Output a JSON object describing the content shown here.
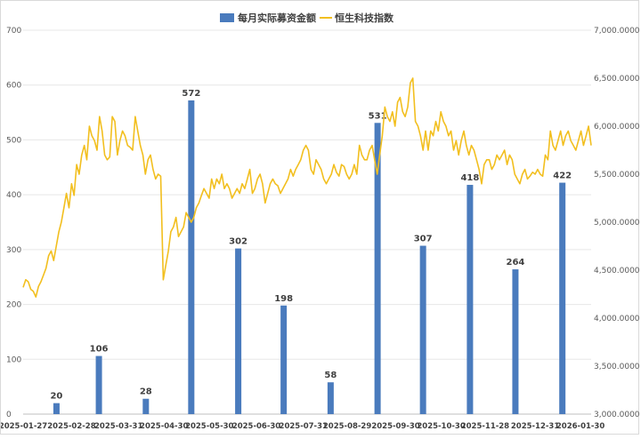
{
  "chart_data": {
    "type": "bar+line",
    "legend": {
      "position": "top-center",
      "bar_label": "每月实际募资金额",
      "line_label": "恒生科技指数"
    },
    "colors": {
      "bar": "#4a7bbd",
      "line": "#f2bf1f",
      "grid": "#e7e7e7"
    },
    "y_left": {
      "range": [
        0,
        700
      ],
      "ticks": [
        "0",
        "100",
        "200",
        "300",
        "400",
        "500",
        "600",
        "700"
      ]
    },
    "y_right": {
      "range": [
        3000,
        7000
      ],
      "ticks": [
        "3,000.0000",
        "3,500.0000",
        "4,000.0000",
        "4,500.0000",
        "5,000.0000",
        "5,500.0000",
        "6,000.0000",
        "6,500.0000",
        "7,000.0000"
      ]
    },
    "x_ticks": [
      "2025-01-27",
      "2025-02-28",
      "2025-03-31",
      "2025-04-30",
      "2025-05-30",
      "2025-06-30",
      "2025-07-31",
      "2025-08-29",
      "2025-09-30",
      "2025-10-30",
      "2025-11-28",
      "2025-12-31",
      "2026-01-30"
    ],
    "bars": [
      {
        "month": "2025-02",
        "value": 20,
        "label": "20"
      },
      {
        "month": "2025-03",
        "value": 106,
        "label": "106"
      },
      {
        "month": "2025-04",
        "value": 28,
        "label": "28"
      },
      {
        "month": "2025-05",
        "value": 572,
        "label": "572"
      },
      {
        "month": "2025-06",
        "value": 302,
        "label": "302"
      },
      {
        "month": "2025-07",
        "value": 198,
        "label": "198"
      },
      {
        "month": "2025-08",
        "value": 58,
        "label": "58"
      },
      {
        "month": "2025-09",
        "value": 531,
        "label": "531"
      },
      {
        "month": "2025-10",
        "value": 307,
        "label": "307"
      },
      {
        "month": "2025-11",
        "value": 418,
        "label": "418"
      },
      {
        "month": "2025-12",
        "value": 264,
        "label": "264"
      },
      {
        "month": "2026-01",
        "value": 422,
        "label": "422"
      }
    ],
    "line_series": {
      "name": "恒生科技指数",
      "x_start": "2025-01-27",
      "x_end": "2026-02-06",
      "values": [
        4320,
        4400,
        4380,
        4300,
        4280,
        4220,
        4330,
        4380,
        4450,
        4520,
        4650,
        4700,
        4600,
        4750,
        4900,
        5000,
        5150,
        5300,
        5150,
        5400,
        5280,
        5600,
        5500,
        5700,
        5800,
        5650,
        6000,
        5900,
        5850,
        5750,
        6100,
        5950,
        5700,
        5650,
        5680,
        6100,
        6050,
        5700,
        5850,
        5950,
        5900,
        5800,
        5780,
        5750,
        6100,
        5950,
        5800,
        5700,
        5500,
        5650,
        5700,
        5550,
        5450,
        5500,
        5480,
        4400,
        4550,
        4700,
        4900,
        4950,
        5050,
        4850,
        4900,
        4950,
        5100,
        5050,
        5000,
        5050,
        5150,
        5200,
        5280,
        5350,
        5300,
        5250,
        5450,
        5350,
        5450,
        5400,
        5500,
        5350,
        5400,
        5350,
        5250,
        5300,
        5350,
        5300,
        5400,
        5350,
        5450,
        5550,
        5300,
        5350,
        5450,
        5500,
        5400,
        5200,
        5300,
        5400,
        5450,
        5400,
        5380,
        5300,
        5350,
        5400,
        5450,
        5550,
        5480,
        5550,
        5600,
        5650,
        5750,
        5800,
        5750,
        5550,
        5500,
        5650,
        5600,
        5550,
        5450,
        5400,
        5450,
        5500,
        5600,
        5520,
        5480,
        5600,
        5580,
        5500,
        5450,
        5500,
        5600,
        5500,
        5800,
        5700,
        5650,
        5650,
        5750,
        5800,
        5650,
        5500,
        5700,
        5900,
        6200,
        6100,
        6050,
        6150,
        6000,
        6250,
        6300,
        6150,
        6100,
        6200,
        6450,
        6500,
        6050,
        6000,
        5900,
        5750,
        5950,
        5750,
        5950,
        5900,
        6050,
        5950,
        6150,
        6050,
        6000,
        5900,
        5950,
        5750,
        5850,
        5700,
        5850,
        5950,
        5800,
        5700,
        5800,
        5750,
        5650,
        5550,
        5400,
        5600,
        5650,
        5650,
        5550,
        5600,
        5700,
        5650,
        5700,
        5750,
        5600,
        5700,
        5650,
        5500,
        5450,
        5400,
        5500,
        5550,
        5450,
        5480,
        5520,
        5500,
        5550,
        5500,
        5480,
        5700,
        5650,
        5950,
        5800,
        5750,
        5850,
        5950,
        5800,
        5900,
        5950,
        5850,
        5800,
        5750,
        5850,
        5950,
        5800,
        5900,
        6000,
        5800
      ]
    }
  }
}
